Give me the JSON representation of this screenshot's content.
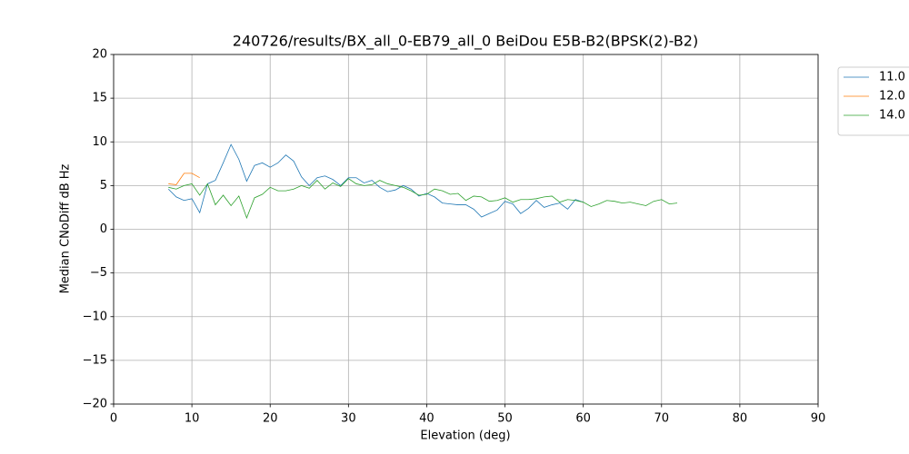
{
  "chart_data": {
    "type": "line",
    "title": "240726/results/BX_all_0-EB79_all_0 BeiDou E5B-B2(BPSK(2)-B2)",
    "xlabel": "Elevation (deg)",
    "ylabel": "Median CNoDiff dB Hz",
    "xlim": [
      0,
      90
    ],
    "ylim": [
      -20,
      20
    ],
    "xticks": [
      0,
      10,
      20,
      30,
      40,
      50,
      60,
      70,
      80,
      90
    ],
    "yticks": [
      {
        "value": -20,
        "label": "−20"
      },
      {
        "value": -15,
        "label": "−15"
      },
      {
        "value": -10,
        "label": "−10"
      },
      {
        "value": -5,
        "label": "−5"
      },
      0,
      5,
      10,
      15,
      20
    ],
    "grid": true,
    "legend": "outside upper right",
    "series": [
      {
        "name": "11.0",
        "color": "#1f77b4",
        "x": [
          7,
          8,
          9,
          10,
          11,
          12,
          13,
          14,
          15,
          16,
          17,
          18,
          19,
          20,
          21,
          22,
          23,
          24,
          25,
          26,
          27,
          28,
          29,
          30,
          31,
          32,
          33,
          34,
          35,
          36,
          37,
          38,
          39,
          40,
          41,
          42,
          43,
          44,
          45,
          46,
          47,
          48,
          49,
          50,
          51,
          52,
          53,
          54,
          55,
          56,
          57,
          58,
          59,
          60
        ],
        "values": [
          4.6,
          3.7,
          3.3,
          3.5,
          1.9,
          5.2,
          5.6,
          7.6,
          9.7,
          8.0,
          5.5,
          7.3,
          7.6,
          7.1,
          7.6,
          8.5,
          7.8,
          6.0,
          5.0,
          5.9,
          6.1,
          5.7,
          5.0,
          5.9,
          5.9,
          5.3,
          5.6,
          4.8,
          4.3,
          4.5,
          5.0,
          4.6,
          3.8,
          4.1,
          3.7,
          3.0,
          2.9,
          2.8,
          2.8,
          2.3,
          1.4,
          1.8,
          2.2,
          3.2,
          2.9,
          1.8,
          2.4,
          3.3,
          2.5,
          2.8,
          3.0,
          2.3,
          3.4,
          3.1
        ]
      },
      {
        "name": "12.0",
        "color": "#ff7f0e",
        "x": [
          7,
          8,
          9,
          10,
          11
        ],
        "values": [
          5.2,
          5.1,
          6.4,
          6.4,
          5.9
        ]
      },
      {
        "name": "14.0",
        "color": "#2ca02c",
        "x": [
          7,
          8,
          9,
          10,
          11,
          12,
          13,
          14,
          15,
          16,
          17,
          18,
          19,
          20,
          21,
          22,
          23,
          24,
          25,
          26,
          27,
          28,
          29,
          30,
          31,
          32,
          33,
          34,
          35,
          36,
          37,
          38,
          39,
          40,
          41,
          42,
          43,
          44,
          45,
          46,
          47,
          48,
          49,
          50,
          51,
          52,
          53,
          54,
          55,
          56,
          57,
          58,
          59,
          60,
          61,
          62,
          63,
          64,
          65,
          66,
          67,
          68,
          69,
          70,
          71,
          72
        ],
        "values": [
          4.8,
          4.6,
          5.0,
          5.2,
          3.9,
          5.2,
          2.8,
          3.9,
          2.7,
          3.8,
          1.3,
          3.6,
          4.0,
          4.8,
          4.4,
          4.4,
          4.6,
          5.0,
          4.7,
          5.6,
          4.6,
          5.3,
          4.9,
          5.8,
          5.2,
          5.0,
          5.1,
          5.6,
          5.2,
          5.0,
          4.8,
          4.4,
          3.9,
          4.0,
          4.6,
          4.4,
          4.0,
          4.1,
          3.3,
          3.8,
          3.7,
          3.2,
          3.3,
          3.6,
          3.1,
          3.4,
          3.4,
          3.5,
          3.7,
          3.8,
          3.1,
          3.4,
          3.3,
          3.1,
          2.6,
          2.9,
          3.3,
          3.2,
          3.0,
          3.1,
          2.9,
          2.7,
          3.2,
          3.4,
          2.9,
          3.0
        ]
      }
    ]
  }
}
